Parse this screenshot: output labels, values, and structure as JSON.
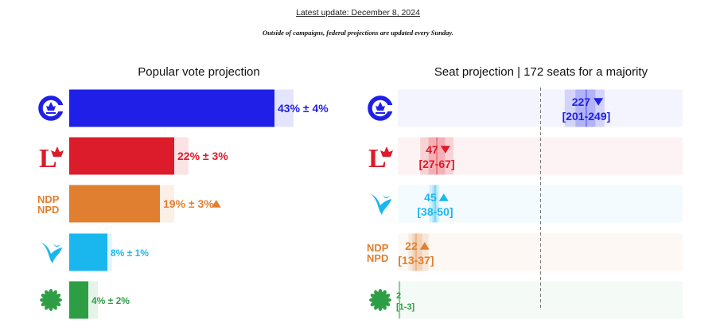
{
  "header": {
    "update": "Latest update: December 8, 2024",
    "note": "Outside of campaigns, federal projections are updated every Sunday."
  },
  "chart_data": [
    {
      "type": "bar",
      "title": "Popular vote projection",
      "unit": "%",
      "categories": [
        "Conservative",
        "Liberal",
        "NDP",
        "Bloc Québécois",
        "Green"
      ],
      "values": [
        43,
        22,
        19,
        8,
        4
      ],
      "margins": [
        4,
        3,
        3,
        1,
        2
      ],
      "trend": [
        "",
        "",
        "up",
        "",
        ""
      ],
      "labels": [
        "43% ± 4%",
        "22% ± 3%",
        "19% ± 3%",
        "8% ± 1%",
        "4% ± 2%"
      ],
      "colors": [
        "#1f1fe8",
        "#dc1b2b",
        "#e07f30",
        "#1ab7ef",
        "#2e9e45"
      ]
    },
    {
      "type": "bar",
      "title": "Seat projection | 172 seats for a majority",
      "categories": [
        "Conservative",
        "Liberal",
        "Bloc Québécois",
        "NDP",
        "Green"
      ],
      "values": [
        227,
        47,
        45,
        22,
        2
      ],
      "ranges": [
        [
          201,
          249
        ],
        [
          27,
          67
        ],
        [
          38,
          50
        ],
        [
          13,
          37
        ],
        [
          1,
          3
        ]
      ],
      "trend": [
        "down",
        "down",
        "up",
        "up",
        ""
      ],
      "value_labels": [
        "227",
        "47",
        "45",
        "22",
        "2"
      ],
      "range_labels": [
        "[201-249]",
        "[27-67]",
        "[38-50]",
        "[13-37]",
        "[1-3]"
      ],
      "majority": 172,
      "colors": [
        "#1f1fe8",
        "#dc1b2b",
        "#1ab7ef",
        "#e07f30",
        "#2e9e45"
      ]
    }
  ],
  "logos": {
    "vote": [
      "conservative-logo",
      "liberal-logo",
      "ndp-logo",
      "bloc-logo",
      "green-logo"
    ],
    "seat": [
      "conservative-logo",
      "liberal-logo",
      "bloc-logo",
      "ndp-logo",
      "green-logo"
    ],
    "ndp_text": [
      "NDP",
      "NPD"
    ]
  }
}
